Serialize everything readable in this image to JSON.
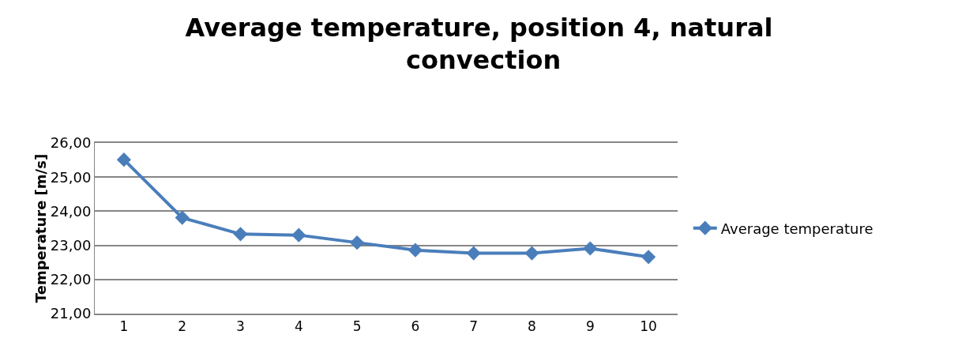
{
  "chart_data": {
    "type": "line",
    "title": "Average temperature, position 4, natural convection",
    "ylabel": "Temperature [m/s]",
    "categories": [
      "1",
      "2",
      "3",
      "4",
      "5",
      "6",
      "7",
      "8",
      "9",
      "10"
    ],
    "series": [
      {
        "name": "Average temperature",
        "color": "#4a7ebb",
        "values": [
          25.51,
          23.81,
          23.33,
          23.3,
          23.08,
          22.86,
          22.77,
          22.77,
          22.91,
          22.66
        ]
      }
    ],
    "ylim": [
      21,
      26
    ],
    "yticks": [
      {
        "value": 21,
        "label": "21,00"
      },
      {
        "value": 22,
        "label": "22,00"
      },
      {
        "value": 23,
        "label": "23,00"
      },
      {
        "value": 24,
        "label": "24,00"
      },
      {
        "value": 25,
        "label": "25,00"
      },
      {
        "value": 26,
        "label": "26,00"
      }
    ],
    "grid": "y",
    "legend": "right",
    "marker": "diamond",
    "line_style": "solid"
  }
}
